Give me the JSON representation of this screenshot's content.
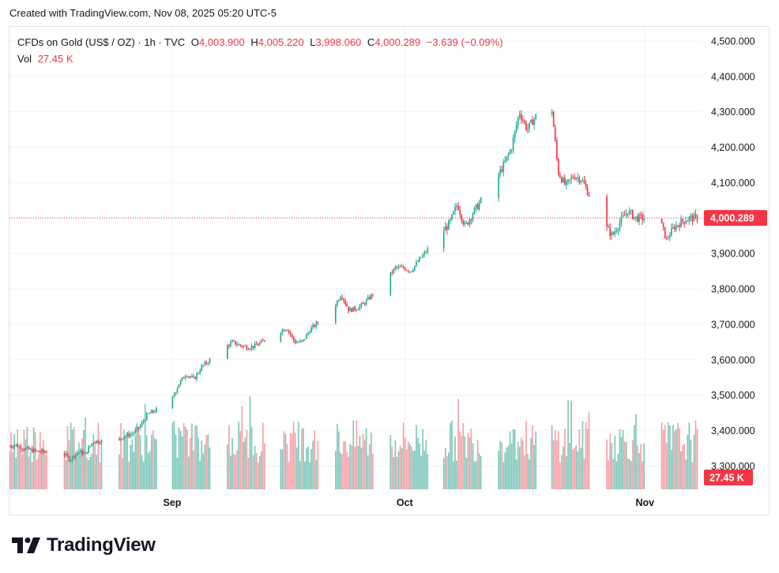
{
  "caption": "Created with TradingView.com, Nov 08, 2025 05:20 UTC-5",
  "brand": {
    "name": "TradingView",
    "logo_icon": "tradingview-logo-icon"
  },
  "colors": {
    "up": "#22ab94",
    "down": "#f23645",
    "vol_up": "#7fc8bc",
    "vol_down": "#f7a1a7",
    "grid": "#f0f3fa",
    "text": "#131722"
  },
  "legend": {
    "symbol": "CFDs on Gold (US$ / OZ) · 1h · TVC",
    "o_label": "O",
    "o_value": "4,003.900",
    "h_label": "H",
    "h_value": "4,005.220",
    "l_label": "L",
    "l_value": "3,998.060",
    "c_label": "C",
    "c_value": "4,000.289",
    "change": "−3.639 (−0.09%)",
    "vol_label": "Vol",
    "vol_value": "27.45 K"
  },
  "chart_data": {
    "type": "candlestick",
    "title": "CFDs on Gold (US$ / OZ) · 1h · TVC",
    "y_ticks": [
      "4,500.000",
      "4,400.000",
      "4,300.000",
      "4,200.000",
      "4,100.000",
      "4,000.000",
      "3,900.000",
      "3,800.000",
      "3,700.000",
      "3,600.000",
      "3,500.000",
      "3,400.000",
      "3,300.000"
    ],
    "y_tick_values": [
      4500,
      4400,
      4300,
      4200,
      4100,
      4000,
      3900,
      3800,
      3700,
      3600,
      3500,
      3400,
      3300
    ],
    "ylim": [
      3232,
      4531
    ],
    "x_ticks": [
      "Sep",
      "Oct",
      "Nov"
    ],
    "x_tick_dates": [
      "2025-09-01",
      "2025-10-01",
      "2025-11-01"
    ],
    "x_range": [
      "2025-08-11",
      "2025-11-08"
    ],
    "last_price": 4000.289,
    "last_price_label": "4,000.289",
    "last_volume_label": "27.45 K",
    "grid": true,
    "price_path": [
      [
        "2025-08-11",
        3355
      ],
      [
        "2025-08-12",
        3360
      ],
      [
        "2025-08-13",
        3350
      ],
      [
        "2025-08-14",
        3345
      ],
      [
        "2025-08-15",
        3340
      ],
      [
        "2025-08-18",
        3340
      ],
      [
        "2025-08-19",
        3318
      ],
      [
        "2025-08-20",
        3340
      ],
      [
        "2025-08-21",
        3335
      ],
      [
        "2025-08-22",
        3370
      ],
      [
        "2025-08-25",
        3370
      ],
      [
        "2025-08-26",
        3385
      ],
      [
        "2025-08-27",
        3390
      ],
      [
        "2025-08-28",
        3410
      ],
      [
        "2025-08-29",
        3445
      ],
      [
        "2025-09-01",
        3480
      ],
      [
        "2025-09-02",
        3530
      ],
      [
        "2025-09-03",
        3560
      ],
      [
        "2025-09-04",
        3545
      ],
      [
        "2025-09-05",
        3580
      ],
      [
        "2025-09-08",
        3635
      ],
      [
        "2025-09-09",
        3650
      ],
      [
        "2025-09-10",
        3640
      ],
      [
        "2025-09-11",
        3635
      ],
      [
        "2025-09-12",
        3640
      ],
      [
        "2025-09-15",
        3680
      ],
      [
        "2025-09-16",
        3690
      ],
      [
        "2025-09-17",
        3650
      ],
      [
        "2025-09-18",
        3650
      ],
      [
        "2025-09-19",
        3685
      ],
      [
        "2025-09-22",
        3745
      ],
      [
        "2025-09-23",
        3785
      ],
      [
        "2025-09-24",
        3740
      ],
      [
        "2025-09-25",
        3745
      ],
      [
        "2025-09-26",
        3760
      ],
      [
        "2025-09-29",
        3830
      ],
      [
        "2025-09-30",
        3860
      ],
      [
        "2025-10-01",
        3860
      ],
      [
        "2025-10-02",
        3850
      ],
      [
        "2025-10-03",
        3880
      ],
      [
        "2025-10-06",
        3960
      ],
      [
        "2025-10-07",
        3985
      ],
      [
        "2025-10-08",
        4040
      ],
      [
        "2025-10-09",
        3975
      ],
      [
        "2025-10-10",
        4015
      ],
      [
        "2025-10-13",
        4110
      ],
      [
        "2025-10-14",
        4150
      ],
      [
        "2025-10-15",
        4200
      ],
      [
        "2025-10-16",
        4300
      ],
      [
        "2025-10-17",
        4250
      ],
      [
        "2025-10-20",
        4350
      ],
      [
        "2025-10-21",
        4130
      ],
      [
        "2025-10-22",
        4090
      ],
      [
        "2025-10-23",
        4120
      ],
      [
        "2025-10-24",
        4110
      ],
      [
        "2025-10-27",
        3980
      ],
      [
        "2025-10-28",
        3950
      ],
      [
        "2025-10-29",
        3990
      ],
      [
        "2025-10-30",
        4020
      ],
      [
        "2025-10-31",
        4000
      ],
      [
        "2025-11-03",
        4000
      ],
      [
        "2025-11-04",
        3940
      ],
      [
        "2025-11-05",
        3975
      ],
      [
        "2025-11-06",
        3990
      ],
      [
        "2025-11-07",
        4000
      ]
    ],
    "annotated_extremes": {
      "high": 4381,
      "low": 3886
    },
    "volume_range_k": [
      0,
      70
    ]
  }
}
